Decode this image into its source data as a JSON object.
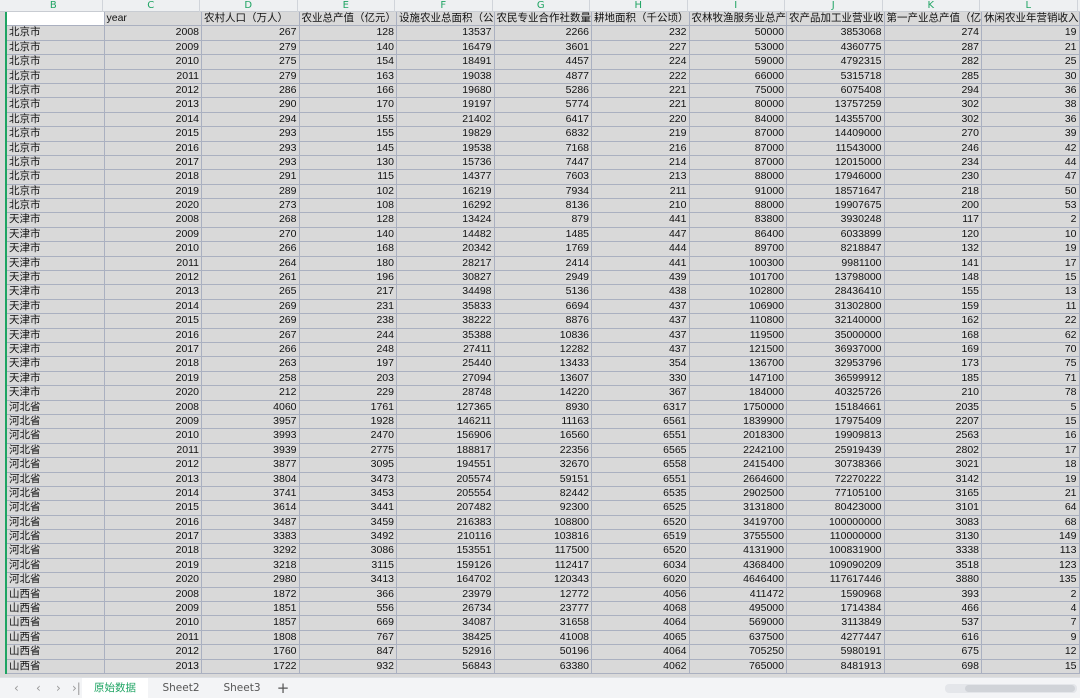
{
  "columns": [
    "B",
    "C",
    "D",
    "E",
    "F",
    "G",
    "H",
    "I",
    "J",
    "K",
    "L"
  ],
  "headers": [
    "",
    "year",
    "农村人口（万人）",
    "农业总产值（亿元）",
    "设施农业总面积（公",
    "农民专业合作社数量",
    "耕地面积（千公顷）",
    "农林牧渔服务业总产",
    "农产品加工业营业收",
    "第一产业总产值（亿",
    "休闲农业年营销收入"
  ],
  "rows": [
    [
      "北京市",
      "2008",
      "267",
      "128",
      "13537",
      "2266",
      "232",
      "50000",
      "3853068",
      "274",
      "19"
    ],
    [
      "北京市",
      "2009",
      "279",
      "140",
      "16479",
      "3601",
      "227",
      "53000",
      "4360775",
      "287",
      "21"
    ],
    [
      "北京市",
      "2010",
      "275",
      "154",
      "18491",
      "4457",
      "224",
      "59000",
      "4792315",
      "282",
      "25"
    ],
    [
      "北京市",
      "2011",
      "279",
      "163",
      "19038",
      "4877",
      "222",
      "66000",
      "5315718",
      "285",
      "30"
    ],
    [
      "北京市",
      "2012",
      "286",
      "166",
      "19680",
      "5286",
      "221",
      "75000",
      "6075408",
      "294",
      "36"
    ],
    [
      "北京市",
      "2013",
      "290",
      "170",
      "19197",
      "5774",
      "221",
      "80000",
      "13757259",
      "302",
      "38"
    ],
    [
      "北京市",
      "2014",
      "294",
      "155",
      "21402",
      "6417",
      "220",
      "84000",
      "14355700",
      "302",
      "36"
    ],
    [
      "北京市",
      "2015",
      "293",
      "155",
      "19829",
      "6832",
      "219",
      "87000",
      "14409000",
      "270",
      "39"
    ],
    [
      "北京市",
      "2016",
      "293",
      "145",
      "19538",
      "7168",
      "216",
      "87000",
      "11543000",
      "246",
      "42"
    ],
    [
      "北京市",
      "2017",
      "293",
      "130",
      "15736",
      "7447",
      "214",
      "87000",
      "12015000",
      "234",
      "44"
    ],
    [
      "北京市",
      "2018",
      "291",
      "115",
      "14377",
      "7603",
      "213",
      "88000",
      "17946000",
      "230",
      "47"
    ],
    [
      "北京市",
      "2019",
      "289",
      "102",
      "16219",
      "7934",
      "211",
      "91000",
      "18571647",
      "218",
      "50"
    ],
    [
      "北京市",
      "2020",
      "273",
      "108",
      "16292",
      "8136",
      "210",
      "88000",
      "19907675",
      "200",
      "53"
    ],
    [
      "天津市",
      "2008",
      "268",
      "128",
      "13424",
      "879",
      "441",
      "83800",
      "3930248",
      "117",
      "2"
    ],
    [
      "天津市",
      "2009",
      "270",
      "140",
      "14482",
      "1485",
      "447",
      "86400",
      "6033899",
      "120",
      "10"
    ],
    [
      "天津市",
      "2010",
      "266",
      "168",
      "20342",
      "1769",
      "444",
      "89700",
      "8218847",
      "132",
      "19"
    ],
    [
      "天津市",
      "2011",
      "264",
      "180",
      "28217",
      "2414",
      "441",
      "100300",
      "9981100",
      "141",
      "17"
    ],
    [
      "天津市",
      "2012",
      "261",
      "196",
      "30827",
      "2949",
      "439",
      "101700",
      "13798000",
      "148",
      "15"
    ],
    [
      "天津市",
      "2013",
      "265",
      "217",
      "34498",
      "5136",
      "438",
      "102800",
      "28436410",
      "155",
      "13"
    ],
    [
      "天津市",
      "2014",
      "269",
      "231",
      "35833",
      "6694",
      "437",
      "106900",
      "31302800",
      "159",
      "11"
    ],
    [
      "天津市",
      "2015",
      "269",
      "238",
      "38222",
      "8876",
      "437",
      "110800",
      "32140000",
      "162",
      "22"
    ],
    [
      "天津市",
      "2016",
      "267",
      "244",
      "35388",
      "10836",
      "437",
      "119500",
      "35000000",
      "168",
      "62"
    ],
    [
      "天津市",
      "2017",
      "266",
      "248",
      "27411",
      "12282",
      "437",
      "121500",
      "36937000",
      "169",
      "70"
    ],
    [
      "天津市",
      "2018",
      "263",
      "197",
      "25440",
      "13433",
      "354",
      "136700",
      "32953796",
      "173",
      "75"
    ],
    [
      "天津市",
      "2019",
      "258",
      "203",
      "27094",
      "13607",
      "330",
      "147100",
      "36599912",
      "185",
      "71"
    ],
    [
      "天津市",
      "2020",
      "212",
      "229",
      "28748",
      "14220",
      "367",
      "184000",
      "40325726",
      "210",
      "78"
    ],
    [
      "河北省",
      "2008",
      "4060",
      "1761",
      "127365",
      "8930",
      "6317",
      "1750000",
      "15184661",
      "2035",
      "5"
    ],
    [
      "河北省",
      "2009",
      "3957",
      "1928",
      "146211",
      "11163",
      "6561",
      "1839900",
      "17975409",
      "2207",
      "15"
    ],
    [
      "河北省",
      "2010",
      "3993",
      "2470",
      "156906",
      "16560",
      "6551",
      "2018300",
      "19909813",
      "2563",
      "16"
    ],
    [
      "河北省",
      "2011",
      "3939",
      "2775",
      "188817",
      "22356",
      "6565",
      "2242100",
      "25919439",
      "2802",
      "17"
    ],
    [
      "河北省",
      "2012",
      "3877",
      "3095",
      "194551",
      "32670",
      "6558",
      "2415400",
      "30738366",
      "3021",
      "18"
    ],
    [
      "河北省",
      "2013",
      "3804",
      "3473",
      "205574",
      "59151",
      "6551",
      "2664600",
      "72270222",
      "3142",
      "19"
    ],
    [
      "河北省",
      "2014",
      "3741",
      "3453",
      "205554",
      "82442",
      "6535",
      "2902500",
      "77105100",
      "3165",
      "21"
    ],
    [
      "河北省",
      "2015",
      "3614",
      "3441",
      "207482",
      "92300",
      "6525",
      "3131800",
      "80423000",
      "3101",
      "64"
    ],
    [
      "河北省",
      "2016",
      "3487",
      "3459",
      "216383",
      "108800",
      "6520",
      "3419700",
      "100000000",
      "3083",
      "68"
    ],
    [
      "河北省",
      "2017",
      "3383",
      "3492",
      "210116",
      "103816",
      "6519",
      "3755500",
      "110000000",
      "3130",
      "149"
    ],
    [
      "河北省",
      "2018",
      "3292",
      "3086",
      "153551",
      "117500",
      "6520",
      "4131900",
      "100831900",
      "3338",
      "113"
    ],
    [
      "河北省",
      "2019",
      "3218",
      "3115",
      "159126",
      "112417",
      "6034",
      "4368400",
      "109090209",
      "3518",
      "123"
    ],
    [
      "河北省",
      "2020",
      "2980",
      "3413",
      "164702",
      "120343",
      "6020",
      "4646400",
      "117617446",
      "3880",
      "135"
    ],
    [
      "山西省",
      "2008",
      "1872",
      "366",
      "23979",
      "12772",
      "4056",
      "411472",
      "1590968",
      "393",
      "2"
    ],
    [
      "山西省",
      "2009",
      "1851",
      "556",
      "26734",
      "23777",
      "4068",
      "495000",
      "1714384",
      "466",
      "4"
    ],
    [
      "山西省",
      "2010",
      "1857",
      "669",
      "34087",
      "31658",
      "4064",
      "569000",
      "3113849",
      "537",
      "7"
    ],
    [
      "山西省",
      "2011",
      "1808",
      "767",
      "38425",
      "41008",
      "4065",
      "637500",
      "4277447",
      "616",
      "9"
    ],
    [
      "山西省",
      "2012",
      "1760",
      "847",
      "52916",
      "50196",
      "4064",
      "705250",
      "5980191",
      "675",
      "12"
    ],
    [
      "山西省",
      "2013",
      "1722",
      "932",
      "56843",
      "63380",
      "4062",
      "765000",
      "8481913",
      "698",
      "15"
    ]
  ],
  "tabs": {
    "items": [
      "原始数据",
      "Sheet2",
      "Sheet3"
    ],
    "active": 0,
    "add": "+"
  },
  "nav": {
    "first": "〈",
    "prev": "〈",
    "next": "〉",
    "last": "〉|"
  },
  "colors": {
    "accent": "#1fa463",
    "cell_bg": "#d9d9d9",
    "grid": "#aab0c0"
  }
}
